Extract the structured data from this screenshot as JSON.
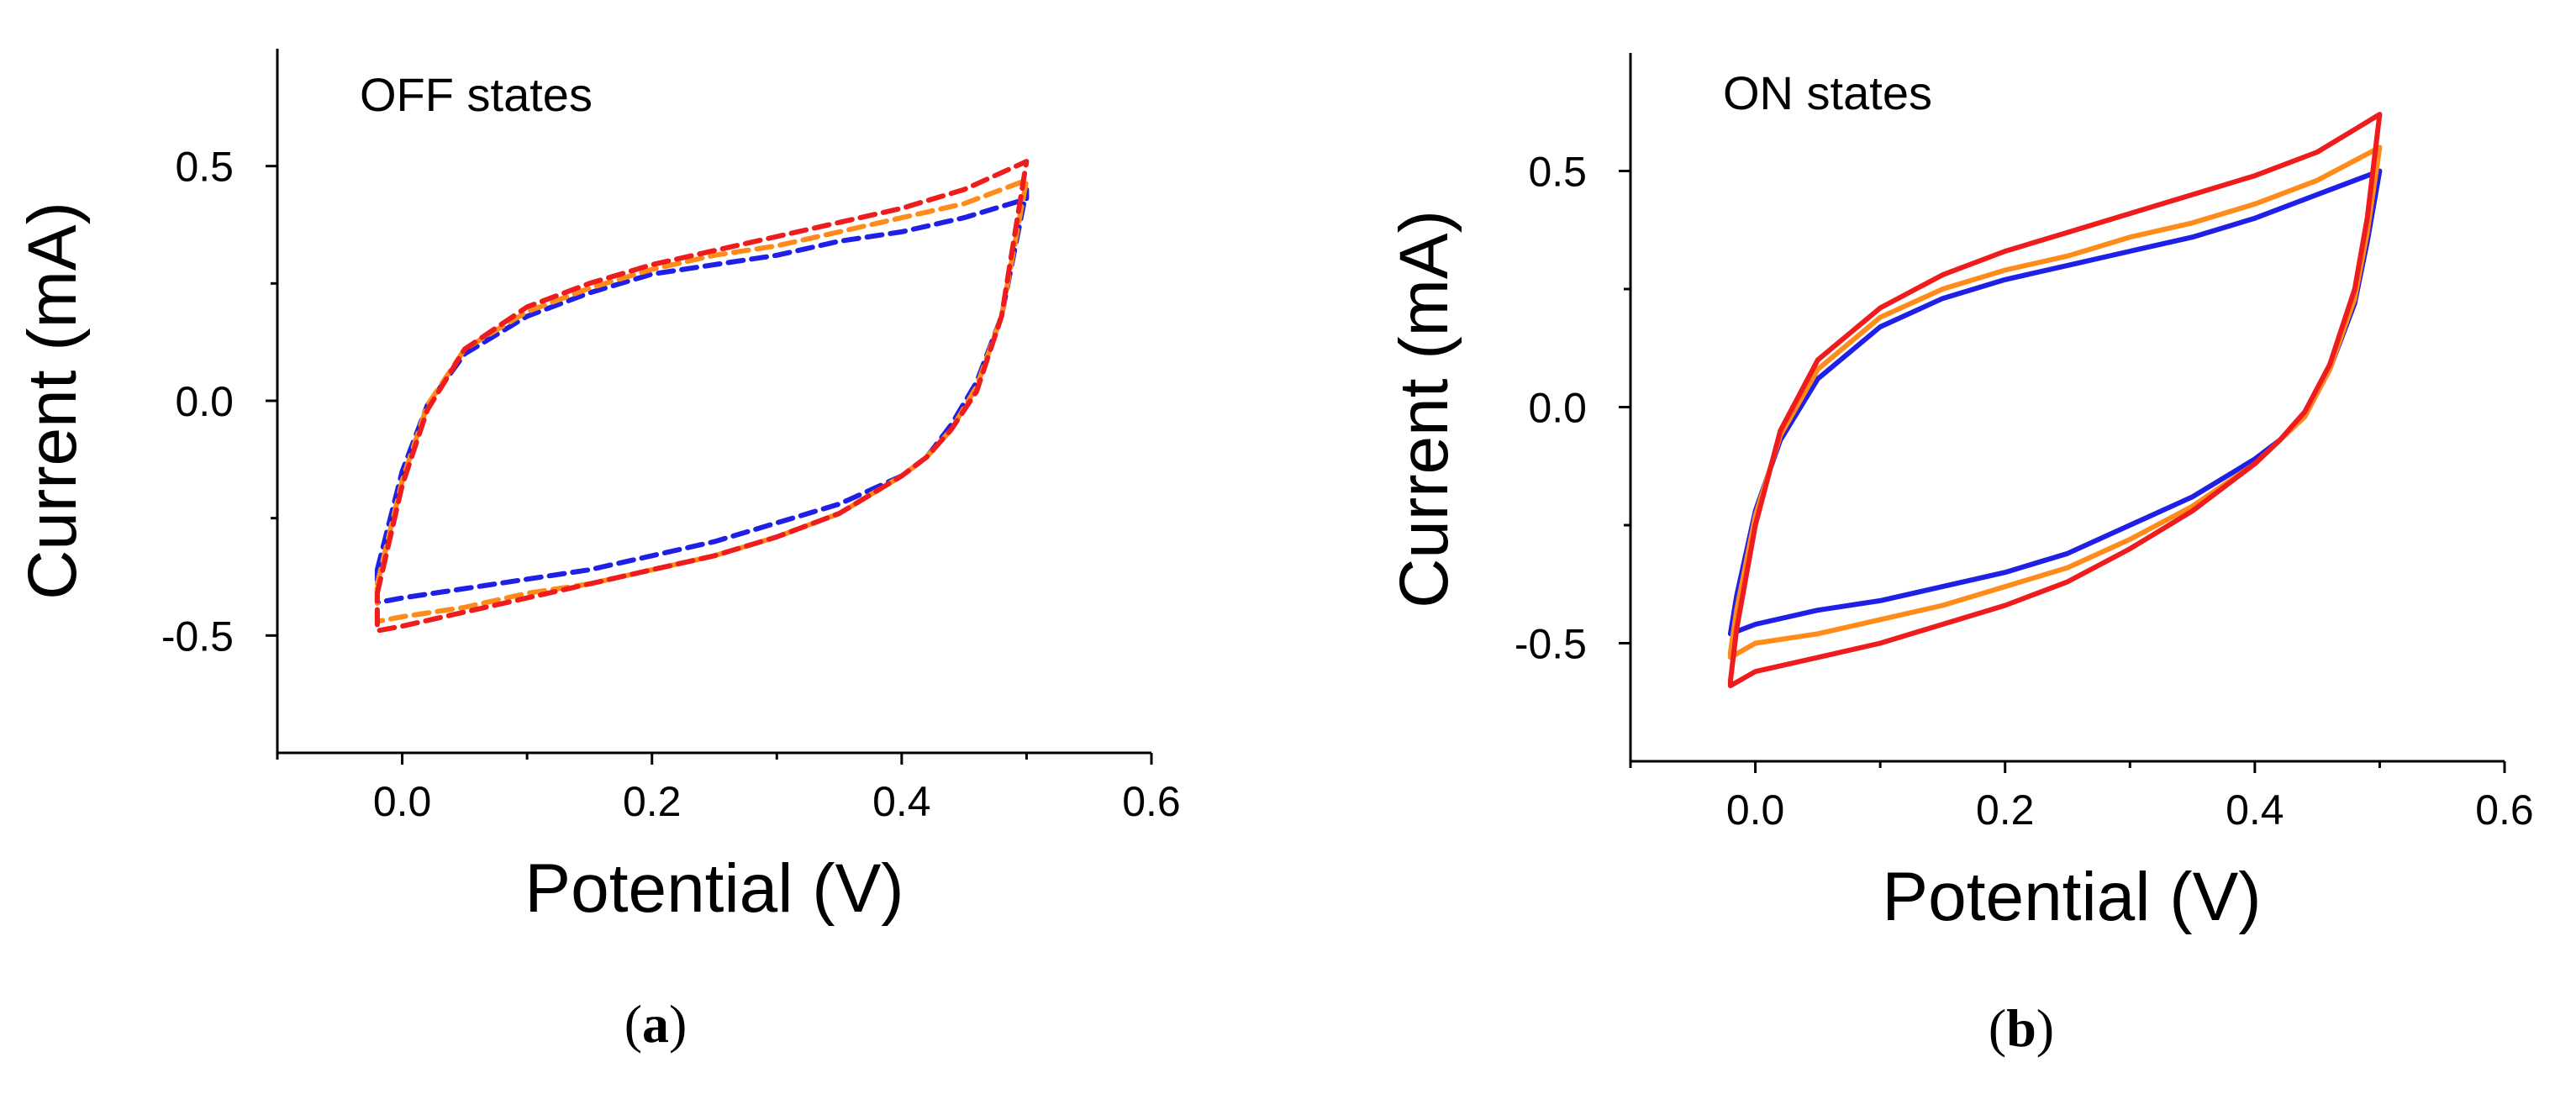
{
  "chart_data": [
    {
      "type": "line",
      "panel_label": "a",
      "annotation": "OFF states",
      "xlabel": "Potential (V)",
      "ylabel": "Current (mA)",
      "xlim": [
        -0.1,
        0.6
      ],
      "ylim": [
        -0.75,
        0.75
      ],
      "xticks": [
        0.0,
        0.2,
        0.4,
        0.6
      ],
      "xtick_labels": [
        "0.0",
        "0.2",
        "0.4",
        "0.6"
      ],
      "xminor": [
        -0.1,
        0.1,
        0.3,
        0.5
      ],
      "yticks": [
        -0.5,
        0.0,
        0.5
      ],
      "ytick_labels": [
        "-0.5",
        "0.0",
        "0.5"
      ],
      "yminor": [
        -0.25,
        0.25
      ],
      "line_style": "dashed",
      "grid": false,
      "series": [
        {
          "name": "blue",
          "color": "#1f1fe6",
          "upper_x": [
            -0.02,
            0.0,
            0.02,
            0.05,
            0.1,
            0.15,
            0.2,
            0.25,
            0.3,
            0.35,
            0.4,
            0.45,
            0.5
          ],
          "upper_y": [
            -0.36,
            -0.15,
            -0.01,
            0.1,
            0.18,
            0.23,
            0.27,
            0.29,
            0.31,
            0.34,
            0.36,
            0.39,
            0.43
          ],
          "lower_x": [
            0.5,
            0.48,
            0.46,
            0.44,
            0.42,
            0.4,
            0.35,
            0.3,
            0.25,
            0.2,
            0.15,
            0.1,
            0.05,
            0.0,
            -0.02
          ],
          "lower_y": [
            0.45,
            0.18,
            0.04,
            -0.05,
            -0.12,
            -0.16,
            -0.22,
            -0.26,
            -0.3,
            -0.33,
            -0.36,
            -0.38,
            -0.4,
            -0.42,
            -0.43
          ]
        },
        {
          "name": "orange",
          "color": "#ff8c1a",
          "upper_x": [
            -0.02,
            0.0,
            0.02,
            0.05,
            0.1,
            0.15,
            0.2,
            0.25,
            0.3,
            0.35,
            0.4,
            0.45,
            0.5
          ],
          "upper_y": [
            -0.39,
            -0.17,
            -0.01,
            0.11,
            0.19,
            0.24,
            0.28,
            0.31,
            0.33,
            0.36,
            0.39,
            0.42,
            0.47
          ],
          "lower_x": [
            0.5,
            0.48,
            0.46,
            0.44,
            0.42,
            0.4,
            0.35,
            0.3,
            0.25,
            0.2,
            0.15,
            0.1,
            0.05,
            0.0,
            -0.02
          ],
          "lower_y": [
            0.47,
            0.18,
            0.03,
            -0.06,
            -0.12,
            -0.16,
            -0.24,
            -0.29,
            -0.33,
            -0.36,
            -0.39,
            -0.41,
            -0.44,
            -0.46,
            -0.47
          ]
        },
        {
          "name": "red",
          "color": "#ee1c1c",
          "upper_x": [
            -0.02,
            0.0,
            0.02,
            0.05,
            0.1,
            0.15,
            0.2,
            0.25,
            0.3,
            0.35,
            0.4,
            0.45,
            0.5
          ],
          "upper_y": [
            -0.41,
            -0.18,
            -0.02,
            0.11,
            0.2,
            0.25,
            0.29,
            0.32,
            0.35,
            0.38,
            0.41,
            0.45,
            0.51
          ],
          "lower_x": [
            0.5,
            0.48,
            0.46,
            0.44,
            0.42,
            0.4,
            0.35,
            0.3,
            0.25,
            0.2,
            0.15,
            0.1,
            0.05,
            0.0,
            -0.02
          ],
          "lower_y": [
            0.51,
            0.18,
            0.02,
            -0.06,
            -0.12,
            -0.16,
            -0.24,
            -0.29,
            -0.33,
            -0.36,
            -0.39,
            -0.42,
            -0.45,
            -0.48,
            -0.49
          ]
        }
      ]
    },
    {
      "type": "line",
      "panel_label": "b",
      "annotation": "ON states",
      "xlabel": "Potential (V)",
      "ylabel": "Current (mA)",
      "xlim": [
        -0.1,
        0.6
      ],
      "ylim": [
        -0.75,
        0.75
      ],
      "xticks": [
        0.0,
        0.2,
        0.4,
        0.6
      ],
      "xtick_labels": [
        "0.0",
        "0.2",
        "0.4",
        "0.6"
      ],
      "xminor": [
        -0.1,
        0.1,
        0.3,
        0.5
      ],
      "yticks": [
        -0.5,
        0.0,
        0.5
      ],
      "ytick_labels": [
        "-0.5",
        "0.0",
        "0.5"
      ],
      "yminor": [
        -0.25,
        0.25
      ],
      "line_style": "solid",
      "grid": false,
      "series": [
        {
          "name": "blue",
          "color": "#1f1fe6",
          "upper_x": [
            -0.02,
            -0.015,
            0.0,
            0.02,
            0.05,
            0.1,
            0.15,
            0.2,
            0.25,
            0.3,
            0.35,
            0.4,
            0.45,
            0.5
          ],
          "upper_y": [
            -0.48,
            -0.4,
            -0.22,
            -0.07,
            0.06,
            0.17,
            0.23,
            0.27,
            0.3,
            0.33,
            0.36,
            0.4,
            0.45,
            0.5
          ],
          "lower_x": [
            0.5,
            0.49,
            0.48,
            0.46,
            0.44,
            0.42,
            0.4,
            0.35,
            0.3,
            0.25,
            0.2,
            0.15,
            0.1,
            0.05,
            0.0,
            -0.02
          ],
          "lower_y": [
            0.5,
            0.35,
            0.22,
            0.08,
            -0.02,
            -0.07,
            -0.11,
            -0.19,
            -0.25,
            -0.31,
            -0.35,
            -0.38,
            -0.41,
            -0.43,
            -0.46,
            -0.48
          ]
        },
        {
          "name": "orange",
          "color": "#ff8c1a",
          "upper_x": [
            -0.02,
            -0.015,
            0.0,
            0.02,
            0.05,
            0.1,
            0.15,
            0.2,
            0.25,
            0.3,
            0.35,
            0.4,
            0.45,
            0.5
          ],
          "upper_y": [
            -0.52,
            -0.43,
            -0.23,
            -0.06,
            0.08,
            0.19,
            0.25,
            0.29,
            0.32,
            0.36,
            0.39,
            0.43,
            0.48,
            0.55
          ],
          "lower_x": [
            0.5,
            0.49,
            0.48,
            0.46,
            0.44,
            0.42,
            0.4,
            0.35,
            0.3,
            0.25,
            0.2,
            0.15,
            0.1,
            0.05,
            0.0,
            -0.02
          ],
          "lower_y": [
            0.55,
            0.37,
            0.23,
            0.08,
            -0.02,
            -0.07,
            -0.12,
            -0.21,
            -0.28,
            -0.34,
            -0.38,
            -0.42,
            -0.45,
            -0.48,
            -0.5,
            -0.53
          ]
        },
        {
          "name": "red",
          "color": "#ee1c1c",
          "upper_x": [
            -0.02,
            -0.015,
            0.0,
            0.02,
            0.05,
            0.1,
            0.15,
            0.2,
            0.25,
            0.3,
            0.35,
            0.4,
            0.45,
            0.5
          ],
          "upper_y": [
            -0.58,
            -0.47,
            -0.25,
            -0.05,
            0.1,
            0.21,
            0.28,
            0.33,
            0.37,
            0.41,
            0.45,
            0.49,
            0.54,
            0.62
          ],
          "lower_x": [
            0.5,
            0.49,
            0.48,
            0.46,
            0.44,
            0.42,
            0.4,
            0.35,
            0.3,
            0.25,
            0.2,
            0.15,
            0.1,
            0.05,
            0.0,
            -0.02
          ],
          "lower_y": [
            0.62,
            0.4,
            0.25,
            0.09,
            -0.01,
            -0.07,
            -0.12,
            -0.22,
            -0.3,
            -0.37,
            -0.42,
            -0.46,
            -0.5,
            -0.53,
            -0.56,
            -0.59
          ]
        }
      ]
    }
  ]
}
